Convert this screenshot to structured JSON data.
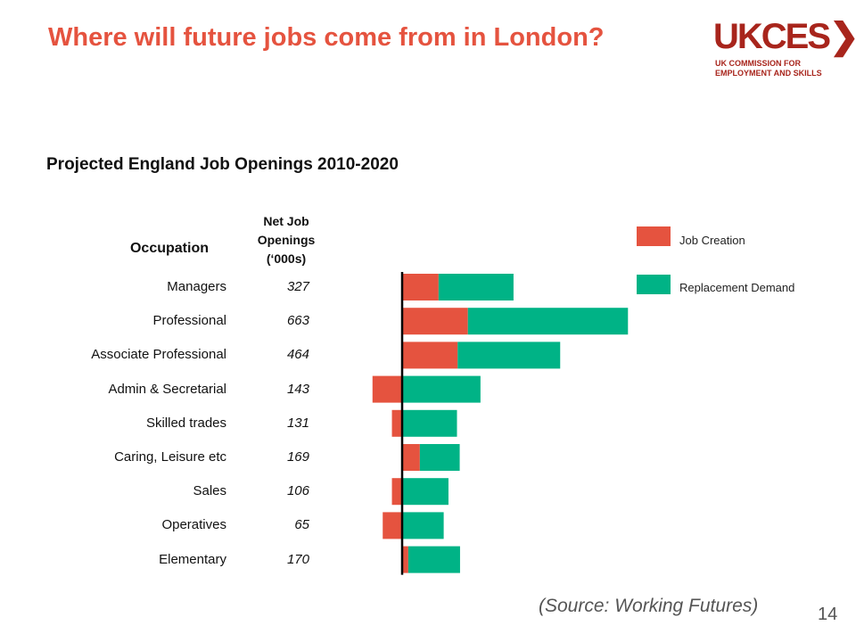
{
  "slide": {
    "title": "Where will future jobs come from in London?",
    "logo_word": "UKCES",
    "logo_line1": "UK COMMISSION FOR",
    "logo_line2": "EMPLOYMENT AND SKILLS",
    "source": "(Source: Working Futures)",
    "page_number": "14"
  },
  "chart_data": {
    "type": "bar",
    "title": "Projected England Job Openings 2010-2020",
    "column_headers": {
      "occupation": "Occupation",
      "net_line1": "Net Job",
      "net_line2": "Openings",
      "net_line3": "(‘000s)"
    },
    "categories": [
      "Managers",
      "Professional",
      "Associate Professional",
      "Admin & Secretarial",
      "Skilled trades",
      "Caring, Leisure etc",
      "Sales",
      "Operatives",
      "Elementary"
    ],
    "net_job_openings": [
      "327",
      "663",
      "464",
      "143",
      "131",
      "169",
      "106",
      "65",
      "170"
    ],
    "series": [
      {
        "name": "Job Creation",
        "color": "#e5533f",
        "values": [
          107,
          193,
          163,
          -87,
          -30,
          52,
          -30,
          -57,
          18
        ]
      },
      {
        "name": "Replacement Demand",
        "color": "#00b386",
        "values": [
          220,
          470,
          301,
          230,
          161,
          117,
          136,
          122,
          152
        ]
      }
    ],
    "stacked": true,
    "legend_position": "top-right",
    "grid": false
  }
}
